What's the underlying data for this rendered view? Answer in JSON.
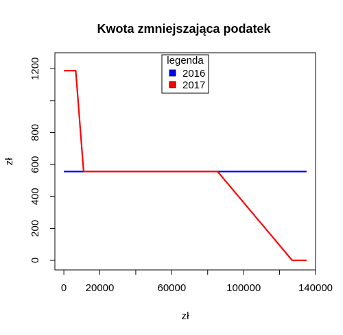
{
  "chart_data": {
    "type": "line",
    "title": "Kwota zmniejszająca podatek",
    "xlabel": "zł",
    "ylabel": "zł",
    "xlim": [
      -5000,
      140000
    ],
    "ylim": [
      -60,
      1300
    ],
    "xticks": [
      0,
      20000,
      40000,
      60000,
      80000,
      100000,
      120000,
      140000
    ],
    "xtick_labels": [
      "0",
      "20000",
      "",
      "60000",
      "",
      "100000",
      "",
      "140000"
    ],
    "yticks": [
      0,
      200,
      400,
      600,
      800,
      1000,
      1200
    ],
    "ytick_labels": [
      "0",
      "200",
      "400",
      "600",
      "800",
      "",
      "1200"
    ],
    "legend_title": "legenda",
    "legend_position": "top",
    "series": [
      {
        "name": "2016",
        "color": "#0000ff",
        "x": [
          0,
          135000
        ],
        "y": [
          556,
          556
        ]
      },
      {
        "name": "2017",
        "color": "#ff0000",
        "x": [
          0,
          6600,
          11000,
          85528,
          127000,
          135000
        ],
        "y": [
          1188,
          1188,
          556,
          556,
          0,
          0
        ]
      }
    ]
  }
}
